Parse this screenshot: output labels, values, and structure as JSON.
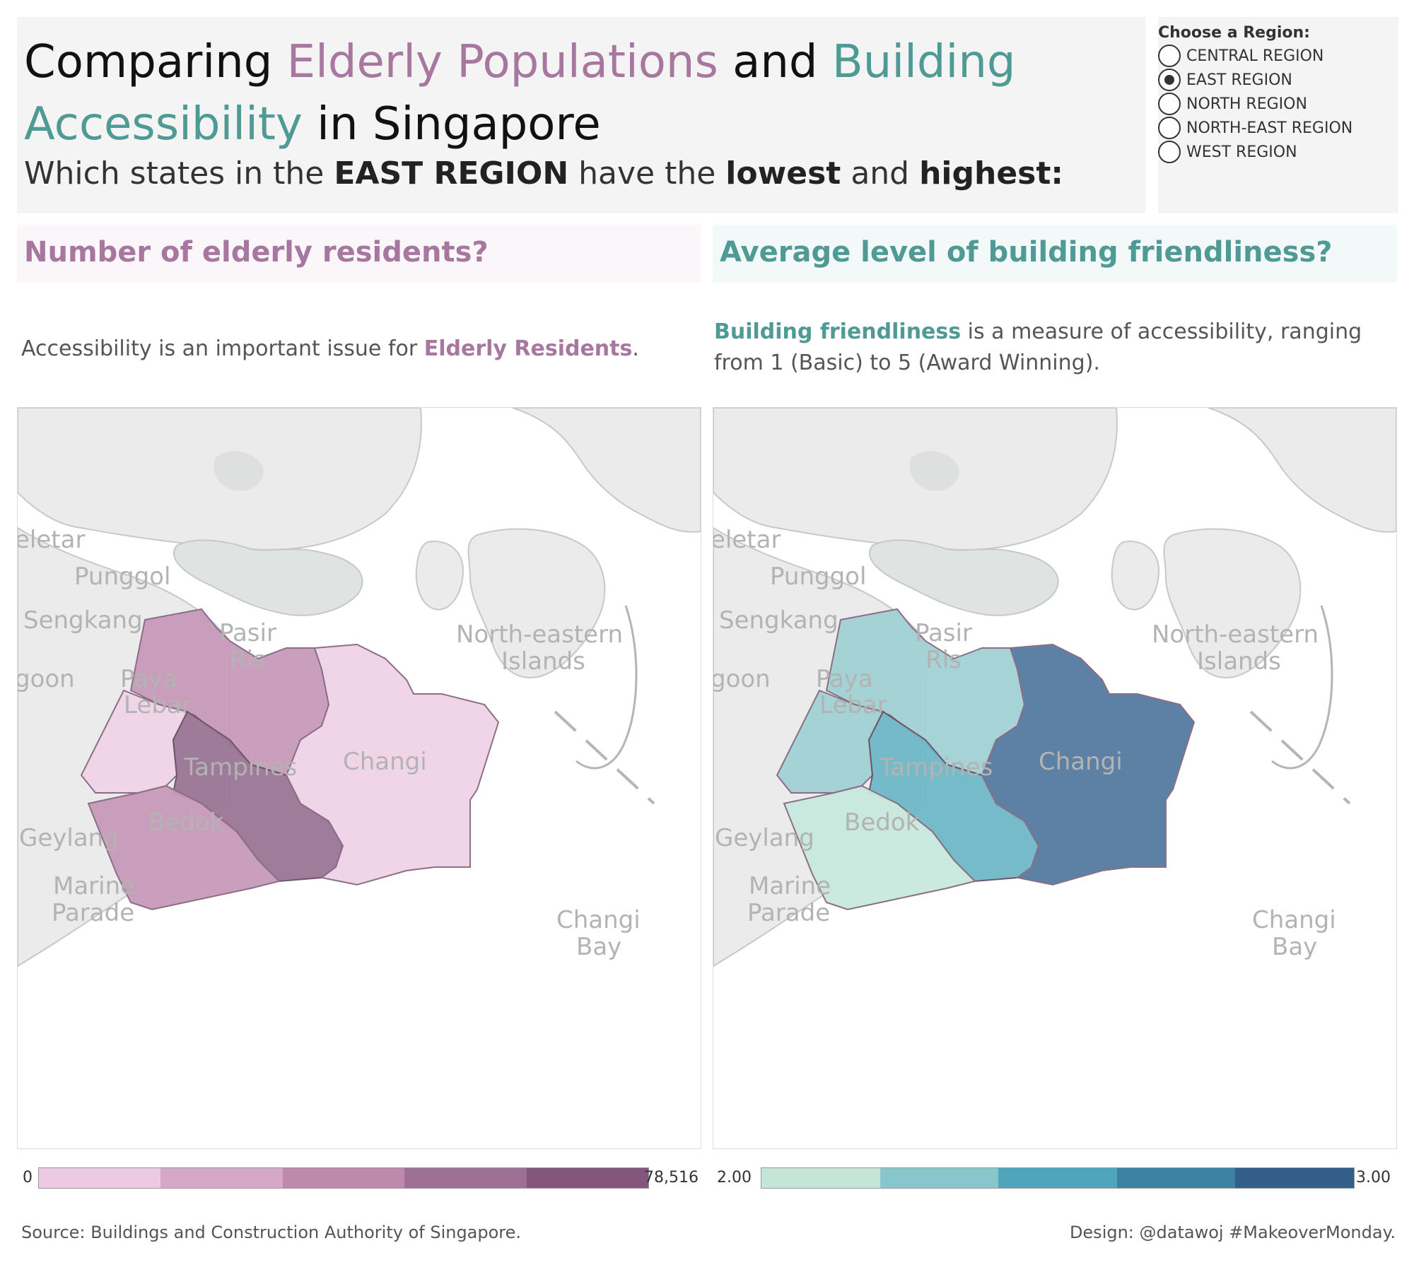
{
  "header": {
    "title_part1": "Comparing ",
    "title_elder": "Elderly Populations",
    "title_and": " and ",
    "title_access": "Building Accessibility",
    "title_end": " in Singapore",
    "subtitle_pre": "Which states in the ",
    "subtitle_region": "EAST REGION",
    "subtitle_mid": " have the ",
    "subtitle_lowest": "lowest",
    "subtitle_and": " and ",
    "subtitle_highest": "highest",
    "subtitle_colon": ":"
  },
  "selector": {
    "title": "Choose a Region:",
    "options": [
      {
        "label": "CENTRAL REGION",
        "selected": false
      },
      {
        "label": "EAST REGION",
        "selected": true
      },
      {
        "label": "NORTH REGION",
        "selected": false
      },
      {
        "label": "NORTH-EAST REGION",
        "selected": false
      },
      {
        "label": "WEST REGION",
        "selected": false
      }
    ]
  },
  "left_panel": {
    "question": "Number of elderly residents?",
    "desc_pre": "Accessibility is an important issue for ",
    "desc_highlight": "Elderly Residents",
    "desc_post": ".",
    "legend_min": "0",
    "legend_max": "78,516",
    "legend_colors": [
      "#edc9e3",
      "#d6a7c9",
      "#be89ad",
      "#9e7096",
      "#84567d"
    ]
  },
  "right_panel": {
    "question": "Average level of building friendliness?",
    "desc_highlight": "Building friendliness",
    "desc_post": " is a measure of accessibility, ranging from 1 (Basic) to 5 (Award Winning).",
    "legend_min": "2.00",
    "legend_max": "3.00",
    "legend_colors": [
      "#c3e6d9",
      "#86c6cc",
      "#4fa5bb",
      "#3c82a3",
      "#345e8a"
    ]
  },
  "map_labels": {
    "seletar": "eletar",
    "punggol": "Punggol",
    "sengkang": "Sengkang",
    "pasir": "Pasir",
    "ris": "Ris",
    "paya": "Paya",
    "lebar": "Lebar",
    "goon": "goon",
    "changi": "Changi",
    "tampines": "Tampines",
    "bedok": "Bedok",
    "geylang": "Geylang",
    "marine": "Marine",
    "parade": "Parade",
    "ne1": "North-eastern",
    "ne2": "Islands",
    "cbay1": "Changi",
    "cbay2": "Bay"
  },
  "districts": {
    "elderly_colors": {
      "pasir_ris": "#c79ab9",
      "paya_lebar": "#f0d4e8",
      "tampines": "#9a7595",
      "bedok": "#c79ab9",
      "changi": "#efd3e8"
    },
    "friendliness_colors": {
      "pasir_ris": "#a1d1d4",
      "paya_lebar": "#a1d1d4",
      "tampines": "#6fb7c6",
      "bedok": "#c7e9dd",
      "changi": "#547aa0"
    }
  },
  "footer": {
    "source": "Source: Buildings and Construction Authority of Singapore.",
    "design": "Design: @datawoj #MakeoverMonday."
  }
}
